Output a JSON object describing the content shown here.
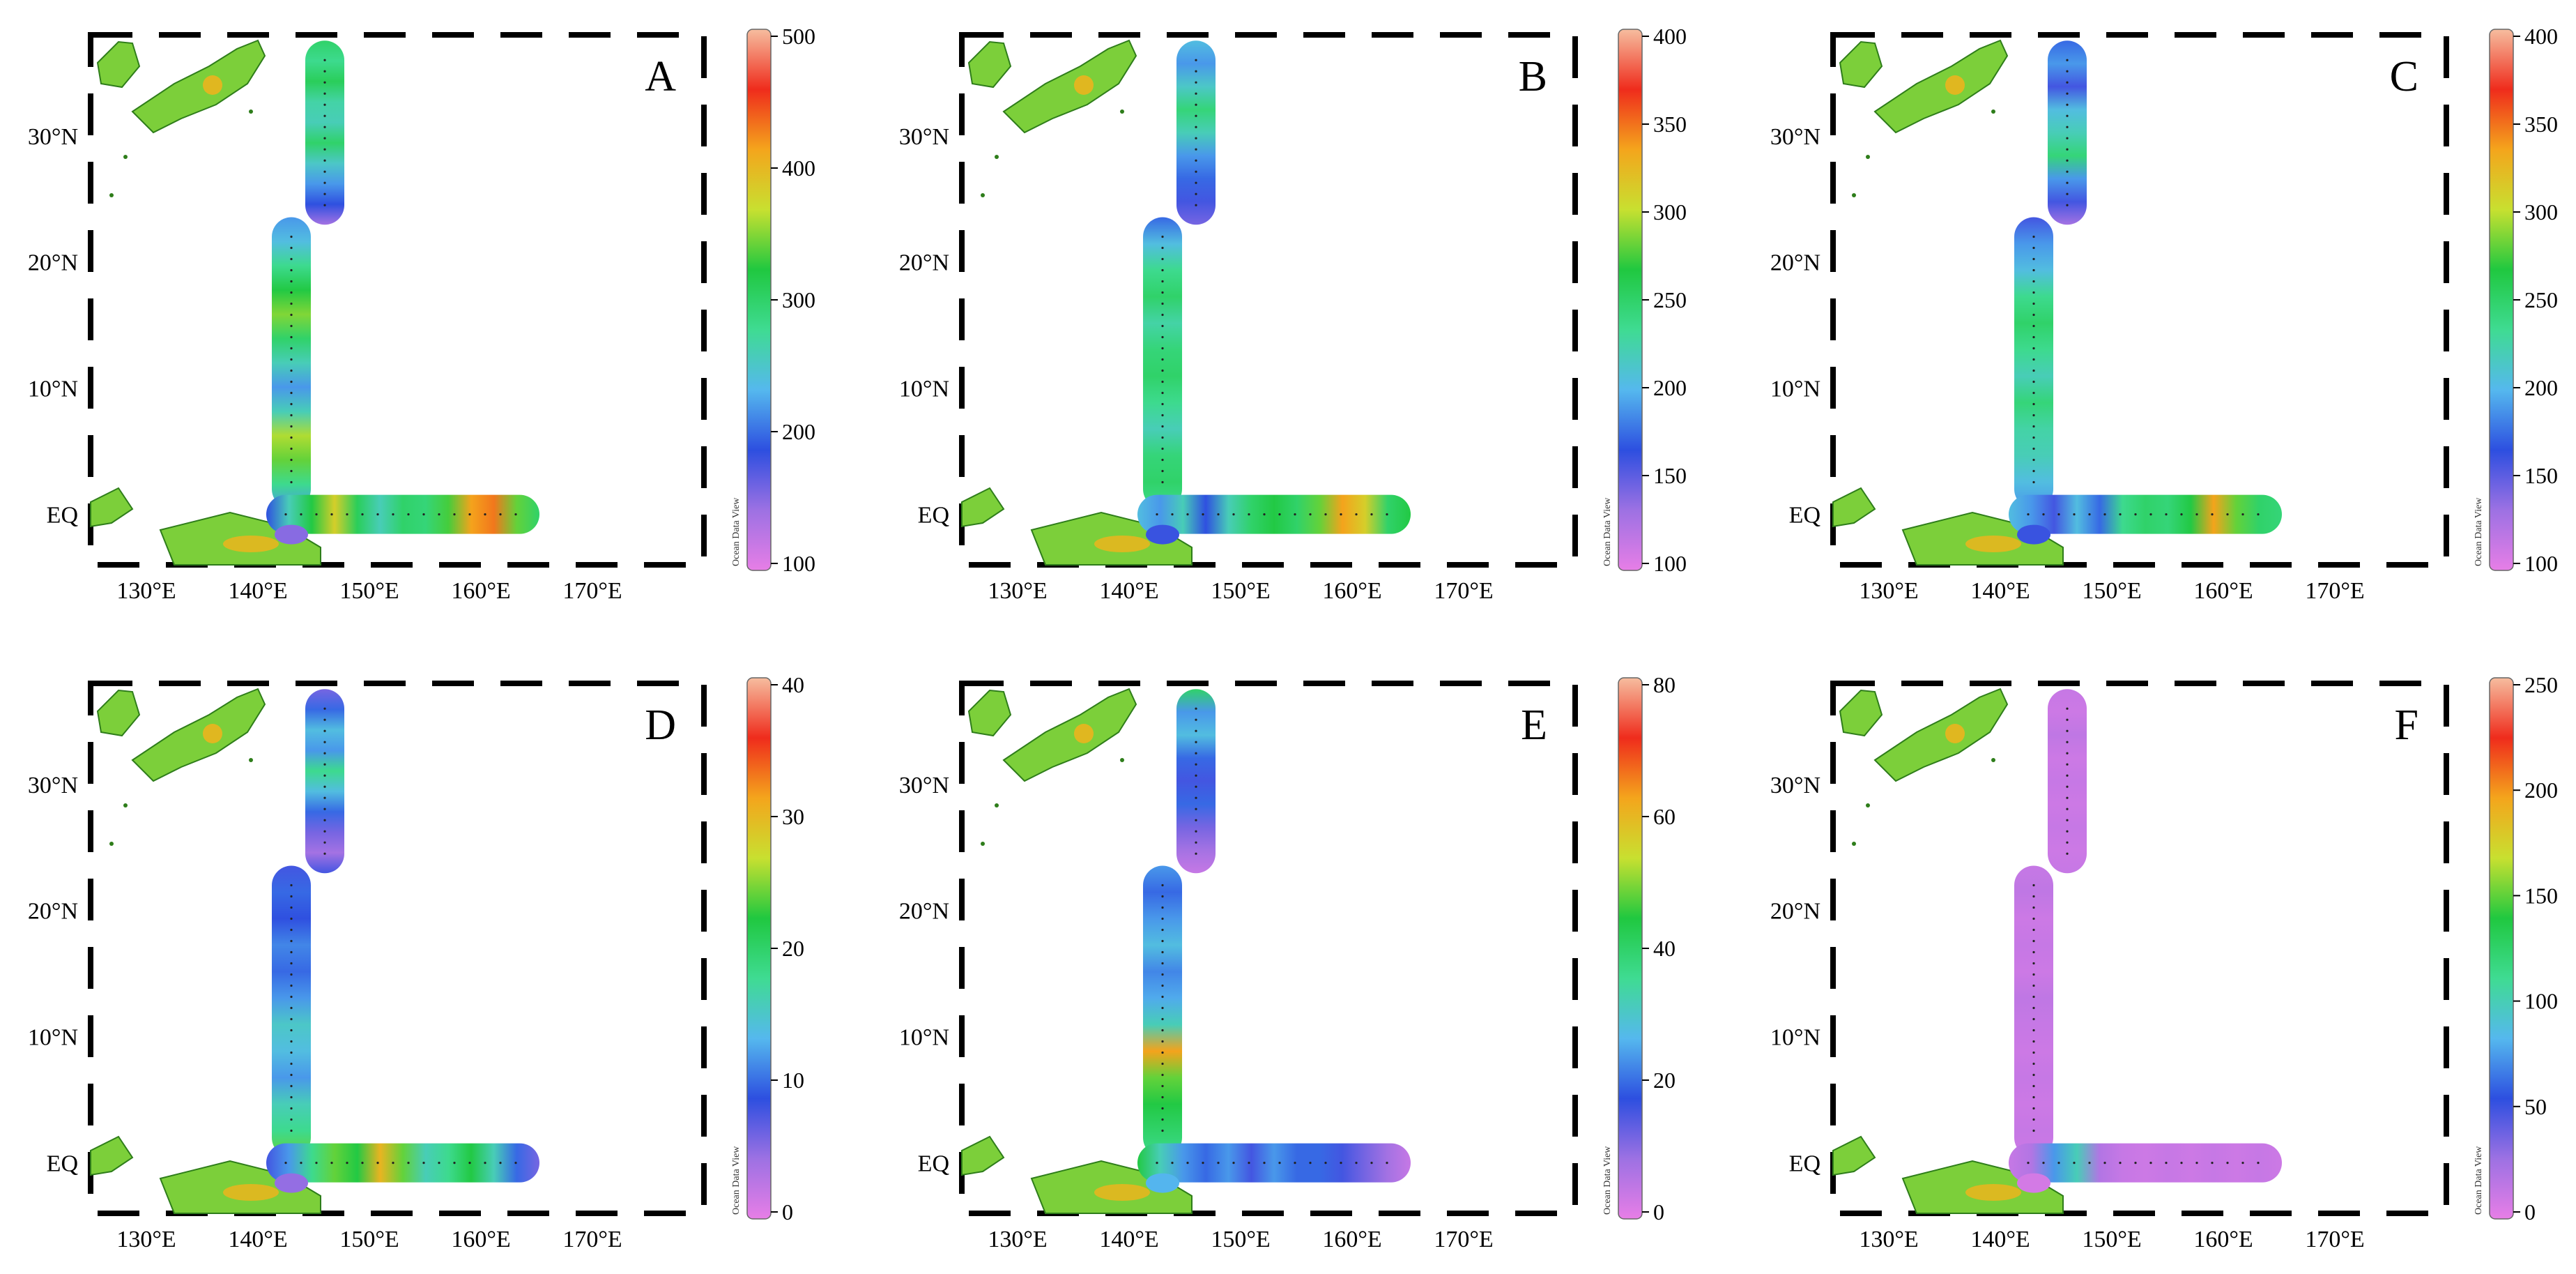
{
  "figure": {
    "axes": {
      "lat_labels": [
        "30°N",
        "20°N",
        "10°N",
        "EQ"
      ],
      "lat_values": [
        30,
        20,
        10,
        0
      ],
      "lon_labels": [
        "130°E",
        "140°E",
        "150°E",
        "160°E",
        "170°E"
      ],
      "lon_values": [
        130,
        140,
        150,
        160,
        170
      ],
      "lon_range": [
        125,
        180
      ],
      "lat_range": [
        -4,
        38
      ]
    },
    "watermark": "Ocean Data View",
    "colorscale": [
      "#e77ee6",
      "#9d71e3",
      "#2d4fe0",
      "#55b8ee",
      "#3fdb92",
      "#20c840",
      "#c8e030",
      "#f4a51c",
      "#ef2c1c",
      "#f6bd9f"
    ],
    "transects": {
      "north": {
        "lon": 146,
        "lat_start": 36,
        "lat_end": 24.5
      },
      "middle": {
        "lon": 143,
        "lat_start": 22,
        "lat_end": 2
      },
      "equatorial": {
        "lat": 0,
        "lon_start": 142.5,
        "lon_end": 163.5
      }
    },
    "panels": [
      {
        "label": "A",
        "colorbar_ticks": [
          "500",
          "400",
          "300",
          "200",
          "100"
        ],
        "colorbar_values": [
          500,
          400,
          300,
          200,
          100
        ],
        "north_values": [
          0.5,
          0.45,
          0.52,
          0.42,
          0.4,
          0.5,
          0.38,
          0.3,
          0.22,
          0.1
        ],
        "middle_values": [
          0.3,
          0.35,
          0.45,
          0.55,
          0.62,
          0.5,
          0.4,
          0.3,
          0.4,
          0.65,
          0.6,
          0.45,
          0.3
        ],
        "equatorial_values": [
          0.22,
          0.4,
          0.55,
          0.7,
          0.52,
          0.4,
          0.5,
          0.48,
          0.58,
          0.78,
          0.82,
          0.6,
          0.5
        ]
      },
      {
        "label": "B",
        "colorbar_ticks": [
          "400",
          "350",
          "300",
          "250",
          "200",
          "150",
          "100"
        ],
        "colorbar_values": [
          400,
          350,
          300,
          250,
          200,
          150,
          100
        ],
        "north_values": [
          0.35,
          0.3,
          0.38,
          0.48,
          0.4,
          0.3,
          0.25,
          0.2,
          0.15
        ],
        "middle_values": [
          0.25,
          0.35,
          0.45,
          0.5,
          0.42,
          0.48,
          0.5,
          0.45,
          0.4,
          0.48,
          0.5,
          0.45
        ],
        "equatorial_values": [
          0.35,
          0.3,
          0.4,
          0.22,
          0.4,
          0.5,
          0.55,
          0.5,
          0.6,
          0.78,
          0.7,
          0.5,
          0.55
        ]
      },
      {
        "label": "C",
        "colorbar_ticks": [
          "400",
          "350",
          "300",
          "250",
          "200",
          "150",
          "100"
        ],
        "colorbar_values": [
          400,
          350,
          300,
          250,
          200,
          150,
          100
        ],
        "north_values": [
          0.25,
          0.3,
          0.2,
          0.35,
          0.4,
          0.48,
          0.3,
          0.2,
          0.1
        ],
        "middle_values": [
          0.2,
          0.3,
          0.35,
          0.45,
          0.5,
          0.45,
          0.4,
          0.48,
          0.42,
          0.4,
          0.35,
          0.3
        ],
        "equatorial_values": [
          0.35,
          0.3,
          0.2,
          0.35,
          0.25,
          0.45,
          0.5,
          0.48,
          0.55,
          0.78,
          0.6,
          0.5,
          0.48
        ]
      },
      {
        "label": "D",
        "colorbar_ticks": [
          "40",
          "30",
          "20",
          "10",
          "0"
        ],
        "colorbar_values": [
          40,
          30,
          20,
          10,
          0
        ],
        "north_values": [
          0.15,
          0.25,
          0.35,
          0.3,
          0.45,
          0.35,
          0.25,
          0.15,
          0.1,
          0.2
        ],
        "middle_values": [
          0.2,
          0.25,
          0.22,
          0.28,
          0.25,
          0.3,
          0.38,
          0.35,
          0.3,
          0.4,
          0.45,
          0.6
        ],
        "equatorial_values": [
          0.2,
          0.3,
          0.45,
          0.6,
          0.55,
          0.75,
          0.6,
          0.4,
          0.45,
          0.55,
          0.4,
          0.25,
          0.15
        ]
      },
      {
        "label": "E",
        "colorbar_ticks": [
          "80",
          "60",
          "40",
          "20",
          "0"
        ],
        "colorbar_values": [
          80,
          60,
          40,
          20,
          0
        ],
        "north_values": [
          0.5,
          0.3,
          0.35,
          0.25,
          0.2,
          0.25,
          0.15,
          0.1,
          0.05
        ],
        "middle_values": [
          0.3,
          0.25,
          0.3,
          0.35,
          0.28,
          0.32,
          0.4,
          0.78,
          0.6,
          0.55,
          0.5,
          0.45
        ],
        "equatorial_values": [
          0.55,
          0.4,
          0.3,
          0.25,
          0.3,
          0.2,
          0.3,
          0.25,
          0.25,
          0.2,
          0.15,
          0.1,
          0.05
        ]
      },
      {
        "label": "F",
        "colorbar_ticks": [
          "250",
          "200",
          "150",
          "100",
          "50",
          "0"
        ],
        "colorbar_values": [
          250,
          200,
          150,
          100,
          50,
          0
        ],
        "north_values": [
          0.05,
          0.04,
          0.06,
          0.04,
          0.05,
          0.04,
          0.05,
          0.04,
          0.05
        ],
        "middle_values": [
          0.05,
          0.06,
          0.04,
          0.05,
          0.04,
          0.06,
          0.05,
          0.04,
          0.05,
          0.04,
          0.05,
          0.04
        ],
        "equatorial_values": [
          0.05,
          0.08,
          0.3,
          0.4,
          0.08,
          0.05,
          0.04,
          0.05,
          0.04,
          0.05,
          0.04,
          0.05,
          0.04
        ]
      }
    ]
  }
}
